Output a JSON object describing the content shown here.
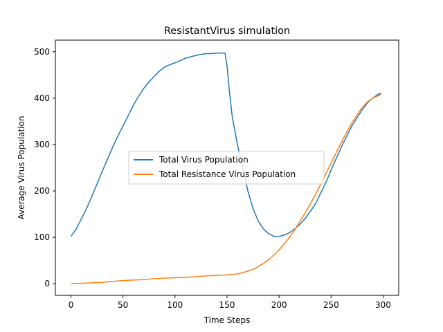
{
  "chart_data": {
    "type": "line",
    "title": "ResistantVirus simulation",
    "xlabel": "Time Steps",
    "ylabel": "Average Virus Population",
    "xlim": [
      -15,
      315
    ],
    "ylim": [
      -25,
      525
    ],
    "xticks": [
      0,
      50,
      100,
      150,
      200,
      250,
      300
    ],
    "yticks": [
      0,
      100,
      200,
      300,
      400,
      500
    ],
    "grid": false,
    "legend_position": "center",
    "series": [
      {
        "name": "Total Virus Population",
        "color": "#1f77b4",
        "points": [
          [
            0,
            102
          ],
          [
            5,
            118
          ],
          [
            10,
            140
          ],
          [
            15,
            162
          ],
          [
            20,
            188
          ],
          [
            25,
            215
          ],
          [
            30,
            242
          ],
          [
            35,
            268
          ],
          [
            40,
            294
          ],
          [
            45,
            318
          ],
          [
            50,
            340
          ],
          [
            55,
            362
          ],
          [
            60,
            385
          ],
          [
            65,
            404
          ],
          [
            70,
            421
          ],
          [
            75,
            435
          ],
          [
            80,
            447
          ],
          [
            85,
            458
          ],
          [
            90,
            467
          ],
          [
            95,
            472
          ],
          [
            100,
            476
          ],
          [
            105,
            481
          ],
          [
            110,
            486
          ],
          [
            115,
            489
          ],
          [
            120,
            492
          ],
          [
            125,
            494
          ],
          [
            130,
            496
          ],
          [
            135,
            496
          ],
          [
            140,
            497
          ],
          [
            145,
            497
          ],
          [
            148,
            497
          ],
          [
            150,
            470
          ],
          [
            152,
            420
          ],
          [
            155,
            360
          ],
          [
            160,
            300
          ],
          [
            165,
            250
          ],
          [
            170,
            200
          ],
          [
            175,
            162
          ],
          [
            180,
            135
          ],
          [
            185,
            118
          ],
          [
            190,
            108
          ],
          [
            195,
            102
          ],
          [
            200,
            102
          ],
          [
            205,
            105
          ],
          [
            210,
            110
          ],
          [
            215,
            118
          ],
          [
            220,
            128
          ],
          [
            225,
            140
          ],
          [
            230,
            156
          ],
          [
            235,
            172
          ],
          [
            240,
            195
          ],
          [
            245,
            218
          ],
          [
            250,
            245
          ],
          [
            255,
            270
          ],
          [
            260,
            295
          ],
          [
            265,
            318
          ],
          [
            270,
            340
          ],
          [
            275,
            358
          ],
          [
            280,
            375
          ],
          [
            285,
            390
          ],
          [
            290,
            400
          ],
          [
            295,
            408
          ],
          [
            298,
            410
          ]
        ]
      },
      {
        "name": "Total Resistance Virus Population",
        "color": "#ff7f0e",
        "points": [
          [
            0,
            0
          ],
          [
            10,
            1
          ],
          [
            20,
            2
          ],
          [
            30,
            3
          ],
          [
            40,
            5
          ],
          [
            50,
            7
          ],
          [
            60,
            8
          ],
          [
            70,
            9
          ],
          [
            80,
            11
          ],
          [
            90,
            12
          ],
          [
            100,
            13
          ],
          [
            110,
            14
          ],
          [
            120,
            15
          ],
          [
            130,
            17
          ],
          [
            140,
            18
          ],
          [
            150,
            19
          ],
          [
            160,
            21
          ],
          [
            165,
            24
          ],
          [
            170,
            27
          ],
          [
            175,
            31
          ],
          [
            180,
            37
          ],
          [
            185,
            44
          ],
          [
            190,
            52
          ],
          [
            195,
            62
          ],
          [
            200,
            73
          ],
          [
            205,
            86
          ],
          [
            210,
            100
          ],
          [
            215,
            116
          ],
          [
            220,
            134
          ],
          [
            225,
            152
          ],
          [
            230,
            172
          ],
          [
            235,
            192
          ],
          [
            240,
            214
          ],
          [
            245,
            237
          ],
          [
            250,
            260
          ],
          [
            255,
            283
          ],
          [
            260,
            305
          ],
          [
            265,
            327
          ],
          [
            270,
            347
          ],
          [
            275,
            364
          ],
          [
            280,
            380
          ],
          [
            285,
            392
          ],
          [
            290,
            400
          ],
          [
            295,
            405
          ],
          [
            298,
            408
          ]
        ]
      }
    ]
  }
}
